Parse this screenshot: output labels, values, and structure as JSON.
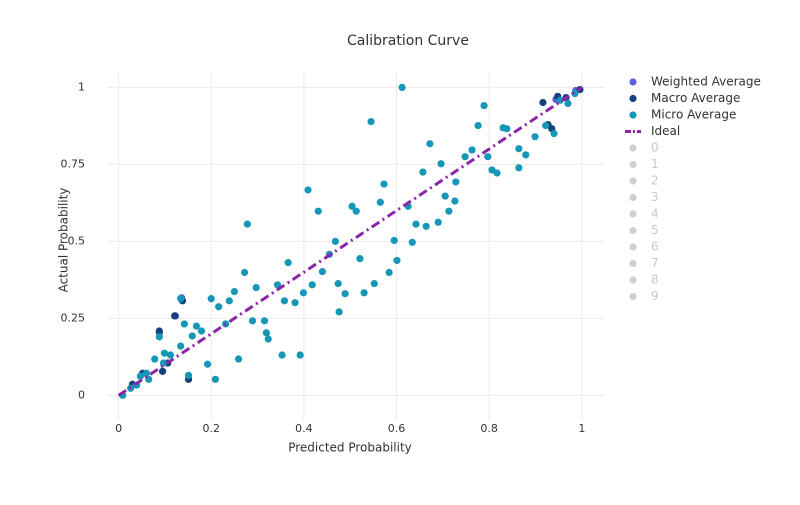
{
  "chart_data": {
    "type": "scatter",
    "title": "Calibration Curve",
    "x_label": "Predicted Probability",
    "y_label": "Actual Probability",
    "xlim": [
      -0.025,
      1.05
    ],
    "ylim": [
      -0.08,
      1.05
    ],
    "xticks": [
      0,
      0.2,
      0.4,
      0.6,
      0.8,
      1
    ],
    "yticks": [
      0,
      0.25,
      0.5,
      0.75,
      1
    ],
    "grid": true,
    "legend": "right",
    "series": [
      {
        "name": "Weighted Average",
        "color": "#5b5fe0",
        "mode": "markers",
        "x": [
          0.136,
          0.088,
          0.123,
          0.944,
          0.987
        ],
        "values": [
          0.317,
          0.203,
          0.258,
          0.961,
          0.99
        ]
      },
      {
        "name": "Macro Average",
        "color": "#173f7c",
        "mode": "markers",
        "x": [
          0.121,
          0.138,
          0.088,
          0.095,
          0.106,
          0.151,
          0.052,
          0.03,
          0.916,
          0.927,
          0.935,
          0.948,
          0.966,
          0.996
        ],
        "values": [
          0.258,
          0.307,
          0.209,
          0.078,
          0.105,
          0.052,
          0.072,
          0.036,
          0.951,
          0.879,
          0.866,
          0.971,
          0.967,
          0.993
        ]
      },
      {
        "name": "Micro Average",
        "color": "#1797b8",
        "mode": "markers",
        "x": [
          0.612,
          0.545,
          0.789,
          0.672,
          0.573,
          0.409,
          0.431,
          0.504,
          0.513,
          0.278,
          0.565,
          0.696,
          0.657,
          0.748,
          0.776,
          0.763,
          0.797,
          0.806,
          0.817,
          0.83,
          0.838,
          0.864,
          0.879,
          0.864,
          0.899,
          0.922,
          0.94,
          0.953,
          0.97,
          0.985,
          0.728,
          0.705,
          0.726,
          0.713,
          0.69,
          0.664,
          0.642,
          0.634,
          0.601,
          0.625,
          0.595,
          0.584,
          0.552,
          0.53,
          0.489,
          0.521,
          0.474,
          0.476,
          0.468,
          0.455,
          0.44,
          0.418,
          0.399,
          0.392,
          0.381,
          0.366,
          0.358,
          0.353,
          0.343,
          0.323,
          0.319,
          0.315,
          0.297,
          0.289,
          0.272,
          0.259,
          0.25,
          0.239,
          0.231,
          0.216,
          0.2,
          0.209,
          0.192,
          0.179,
          0.168,
          0.159,
          0.142,
          0.134,
          0.134,
          0.151,
          0.112,
          0.099,
          0.097,
          0.088,
          0.078,
          0.065,
          0.06,
          0.047,
          0.039,
          0.026,
          0.009
        ],
        "values": [
          1.0,
          0.889,
          0.941,
          0.817,
          0.686,
          0.667,
          0.598,
          0.614,
          0.598,
          0.556,
          0.627,
          0.752,
          0.725,
          0.775,
          0.876,
          0.797,
          0.775,
          0.732,
          0.722,
          0.869,
          0.866,
          0.801,
          0.781,
          0.739,
          0.84,
          0.876,
          0.85,
          0.958,
          0.948,
          0.98,
          0.693,
          0.647,
          0.631,
          0.598,
          0.562,
          0.549,
          0.556,
          0.497,
          0.438,
          0.614,
          0.503,
          0.399,
          0.363,
          0.333,
          0.33,
          0.444,
          0.363,
          0.271,
          0.5,
          0.458,
          0.402,
          0.359,
          0.333,
          0.131,
          0.301,
          0.431,
          0.307,
          0.131,
          0.359,
          0.183,
          0.203,
          0.242,
          0.35,
          0.242,
          0.399,
          0.118,
          0.337,
          0.307,
          0.232,
          0.288,
          0.314,
          0.052,
          0.101,
          0.209,
          0.225,
          0.193,
          0.232,
          0.16,
          0.314,
          0.065,
          0.131,
          0.137,
          0.105,
          0.19,
          0.118,
          0.052,
          0.072,
          0.062,
          0.033,
          0.023,
          0.0
        ]
      },
      {
        "name": "Ideal",
        "color": "#8e24aa",
        "mode": "lines",
        "x": [
          0,
          1
        ],
        "values": [
          0,
          1
        ]
      },
      {
        "name": "0",
        "visible": false
      },
      {
        "name": "1",
        "visible": false
      },
      {
        "name": "2",
        "visible": false
      },
      {
        "name": "3",
        "visible": false
      },
      {
        "name": "4",
        "visible": false
      },
      {
        "name": "5",
        "visible": false
      },
      {
        "name": "6",
        "visible": false
      },
      {
        "name": "7",
        "visible": false
      },
      {
        "name": "8",
        "visible": false
      },
      {
        "name": "9",
        "visible": false
      }
    ]
  }
}
